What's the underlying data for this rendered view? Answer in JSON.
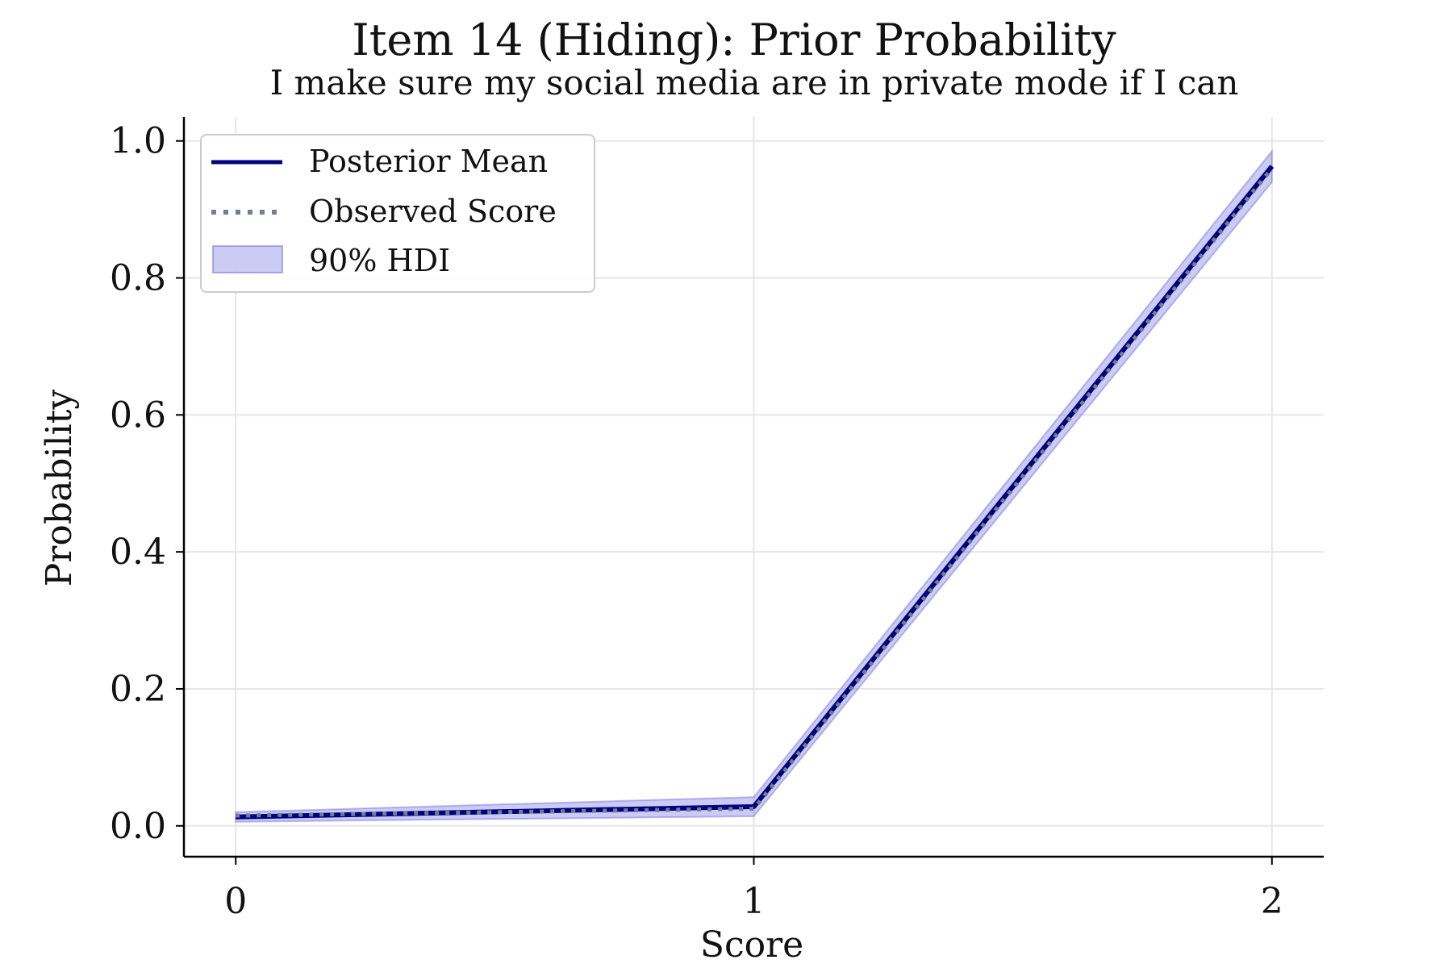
{
  "chart_data": {
    "type": "line",
    "title": "Item 14 (Hiding): Prior Probability",
    "subtitle": "I make sure my social media are in private mode if I can",
    "xlabel": "Score",
    "ylabel": "Probability",
    "x": [
      0,
      1,
      2
    ],
    "x_ticks": [
      "0",
      "1",
      "2"
    ],
    "y_ticks": [
      "0.0",
      "0.2",
      "0.4",
      "0.6",
      "0.8",
      "1.0"
    ],
    "xlim": [
      -0.1,
      2.1
    ],
    "ylim": [
      -0.045,
      1.035
    ],
    "grid": true,
    "legend_position": "top-left",
    "series": [
      {
        "name": "Posterior Mean",
        "values": [
          0.013,
          0.028,
          0.963
        ],
        "color": "#000080",
        "style": "solid"
      },
      {
        "name": "Observed Score",
        "values": [
          0.015,
          0.025,
          0.96
        ],
        "color": "#708090",
        "style": "dotted"
      }
    ],
    "band": {
      "name": "90% HDI",
      "lower": [
        0.006,
        0.014,
        0.94
      ],
      "upper": [
        0.02,
        0.042,
        0.985
      ],
      "color": "#6a6ae0"
    }
  }
}
